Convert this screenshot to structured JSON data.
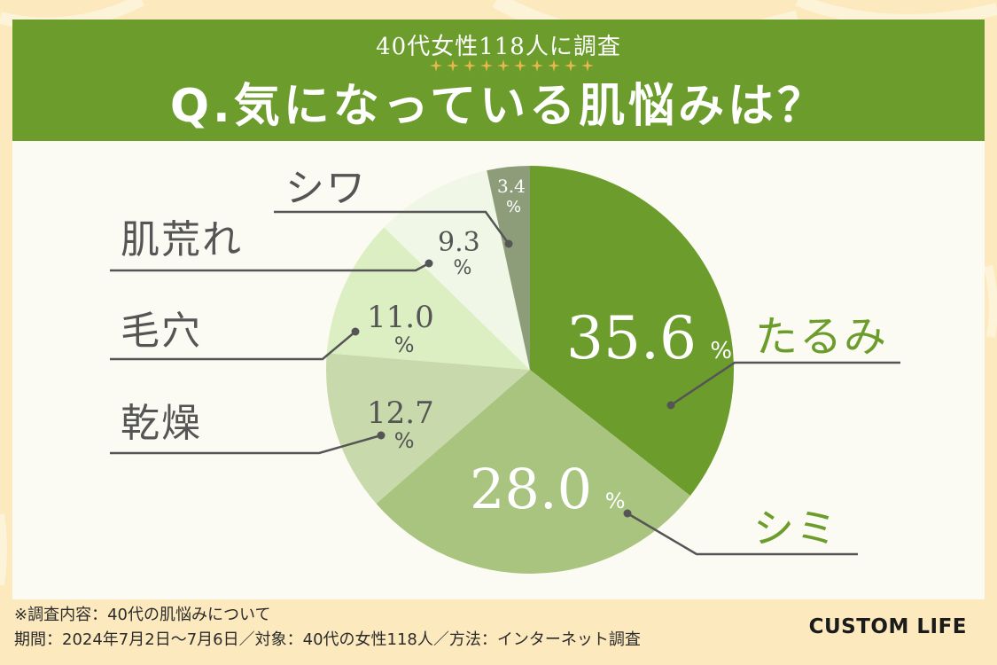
{
  "header": {
    "subtitle": "40代女性118人に調査",
    "title": "Q.気になっている肌悩みは？"
  },
  "chart_data": {
    "type": "pie",
    "title": "Q.気になっている肌悩みは？",
    "unit": "%",
    "slices": [
      {
        "label": "たるみ",
        "value": 35.6,
        "value_text": "35.6",
        "color": "#6b9c2c"
      },
      {
        "label": "シミ",
        "value": 28.0,
        "value_text": "28.0",
        "color": "#a8c47e"
      },
      {
        "label": "乾燥",
        "value": 12.7,
        "value_text": "12.7",
        "color": "#c8d9ab"
      },
      {
        "label": "毛穴",
        "value": 11.0,
        "value_text": "11.0",
        "color": "#dcefc2"
      },
      {
        "label": "肌荒れ",
        "value": 9.3,
        "value_text": "9.3",
        "color": "#f1f7e6"
      },
      {
        "label": "シワ",
        "value": 3.4,
        "value_text": "3.4",
        "color": "#8e9d79"
      }
    ]
  },
  "footer": {
    "line1": "※調査内容：40代の肌悩みについて",
    "line2": "期間：2024年7月2日〜7月6日／対象：40代の女性118人／方法：インターネット調査"
  },
  "brand": "CUSTOM LIFE",
  "colors": {
    "header_bg": "#6b9c2c",
    "page_bg": "#fce9bd",
    "panel_bg": "#fcfbf3",
    "label_text": "#555555",
    "leader_line": "#555555",
    "star": "#e6b74c"
  }
}
